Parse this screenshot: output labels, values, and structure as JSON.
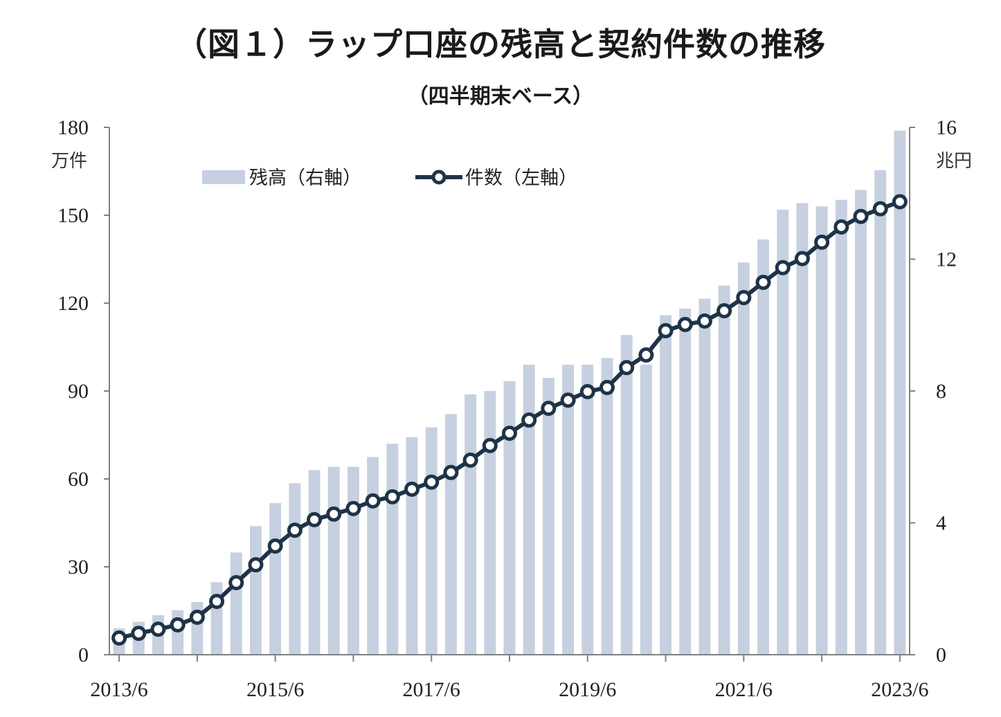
{
  "header": {
    "title": "（図１）ラップ口座の残高と契約件数の推移",
    "subtitle": "（四半期末ベース）"
  },
  "axes": {
    "left_unit": "万件",
    "right_unit": "兆円",
    "left_ticks": [
      "0",
      "30",
      "60",
      "90",
      "120",
      "150",
      "180"
    ],
    "right_ticks": [
      "0",
      "4",
      "8",
      "12",
      "16"
    ],
    "x_ticks": [
      "2013/6",
      "2015/6",
      "2017/6",
      "2019/6",
      "2021/6",
      "2023/6"
    ]
  },
  "legend": {
    "bar_label": "残高（右軸）",
    "line_label": "件数（左軸）"
  },
  "colors": {
    "bar": "#c6d0e0",
    "line": "#1f3347",
    "marker_fill": "#ffffff",
    "axis": "#808080"
  },
  "chart_data": {
    "type": "bar+line",
    "title": "（図１）ラップ口座の残高と契約件数の推移",
    "subtitle": "（四半期末ベース）",
    "xlabel": "",
    "categories": [
      "2013/6",
      "2013/9",
      "2013/12",
      "2014/3",
      "2014/6",
      "2014/9",
      "2014/12",
      "2015/3",
      "2015/6",
      "2015/9",
      "2015/12",
      "2016/3",
      "2016/6",
      "2016/9",
      "2016/12",
      "2017/3",
      "2017/6",
      "2017/9",
      "2017/12",
      "2018/3",
      "2018/6",
      "2018/9",
      "2018/12",
      "2019/3",
      "2019/6",
      "2019/9",
      "2019/12",
      "2020/3",
      "2020/6",
      "2020/9",
      "2020/12",
      "2021/3",
      "2021/6",
      "2021/9",
      "2021/12",
      "2022/3",
      "2022/6",
      "2022/9",
      "2022/12",
      "2023/3",
      "2023/6"
    ],
    "series": [
      {
        "name": "残高（右軸）",
        "type": "bar",
        "axis": "right",
        "unit": "兆円",
        "values": [
          0.8,
          1.0,
          1.2,
          1.35,
          1.6,
          2.2,
          3.1,
          3.9,
          4.6,
          5.2,
          5.6,
          5.7,
          5.7,
          6.0,
          6.4,
          6.6,
          6.9,
          7.3,
          7.9,
          8.0,
          8.3,
          8.8,
          8.4,
          8.8,
          8.8,
          9.0,
          9.7,
          8.8,
          10.3,
          10.5,
          10.8,
          11.2,
          11.9,
          12.6,
          13.5,
          13.7,
          13.6,
          13.8,
          14.1,
          14.7,
          15.9
        ]
      },
      {
        "name": "件数（左軸）",
        "type": "line",
        "axis": "left",
        "unit": "万件",
        "values": [
          5.7,
          7.3,
          8.7,
          10.2,
          12.8,
          18.2,
          24.6,
          30.7,
          37.1,
          42.5,
          46.1,
          48.0,
          49.9,
          52.5,
          53.9,
          56.5,
          58.9,
          62.2,
          66.4,
          71.4,
          75.6,
          80.1,
          84.1,
          86.9,
          89.8,
          91.2,
          98.0,
          102.3,
          110.6,
          112.7,
          113.9,
          117.4,
          121.9,
          127.1,
          132.1,
          135.2,
          140.8,
          146.0,
          149.6,
          152.2,
          154.6
        ]
      }
    ],
    "left_axis": {
      "label": "万件",
      "ylim": [
        0,
        180
      ],
      "ticks": [
        0,
        30,
        60,
        90,
        120,
        150,
        180
      ]
    },
    "right_axis": {
      "label": "兆円",
      "ylim": [
        0,
        16
      ],
      "ticks": [
        0,
        4,
        8,
        12,
        16
      ]
    },
    "x_tick_labels": [
      "2013/6",
      "2015/6",
      "2017/6",
      "2019/6",
      "2021/6",
      "2023/6"
    ],
    "legend_position": "top-left inside plot",
    "grid": false
  }
}
